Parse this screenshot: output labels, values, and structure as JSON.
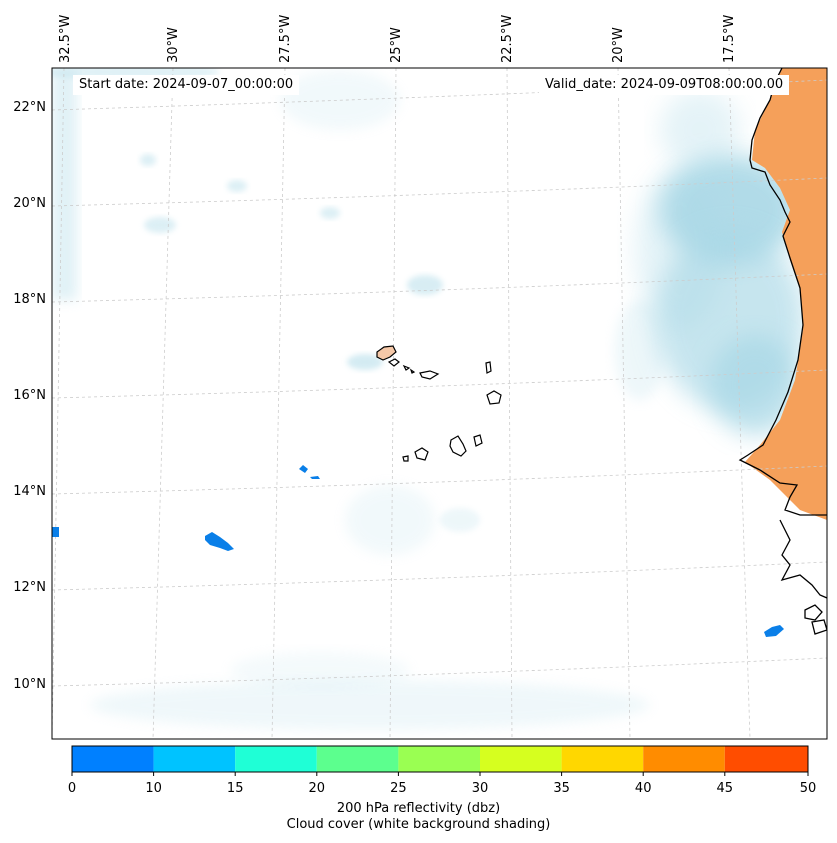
{
  "map": {
    "lon_labels": [
      "32.5°W",
      "30°W",
      "27.5°W",
      "25°W",
      "22.5°W",
      "20°W",
      "17.5°W"
    ],
    "lat_labels": [
      "22°N",
      "20°N",
      "18°N",
      "16°N",
      "14°N",
      "12°N",
      "10°N"
    ],
    "start_date": "Start date: 2024-09-07_00:00:00",
    "valid_date": "Valid_date: 2024-09-09T08:00:00.00"
  },
  "colorbar": {
    "ticks": [
      "0",
      "10",
      "15",
      "20",
      "25",
      "30",
      "35",
      "40",
      "45",
      "50"
    ],
    "colors": [
      "#0080ff",
      "#00c3ff",
      "#1fffd6",
      "#5cff8e",
      "#9aff52",
      "#d6ff1f",
      "#ffd700",
      "#ff8c00",
      "#ff4d00"
    ],
    "label_line1": "200 hPa reflectivity (dbz)",
    "label_line2": "Cloud cover (white background shading)"
  },
  "colors": {
    "cloud": "#a9d8e6",
    "land_orange": "#f5a05a",
    "reflectivity_low": "#0a7fe8",
    "coast": "#000000",
    "grid": "#cccccc"
  }
}
